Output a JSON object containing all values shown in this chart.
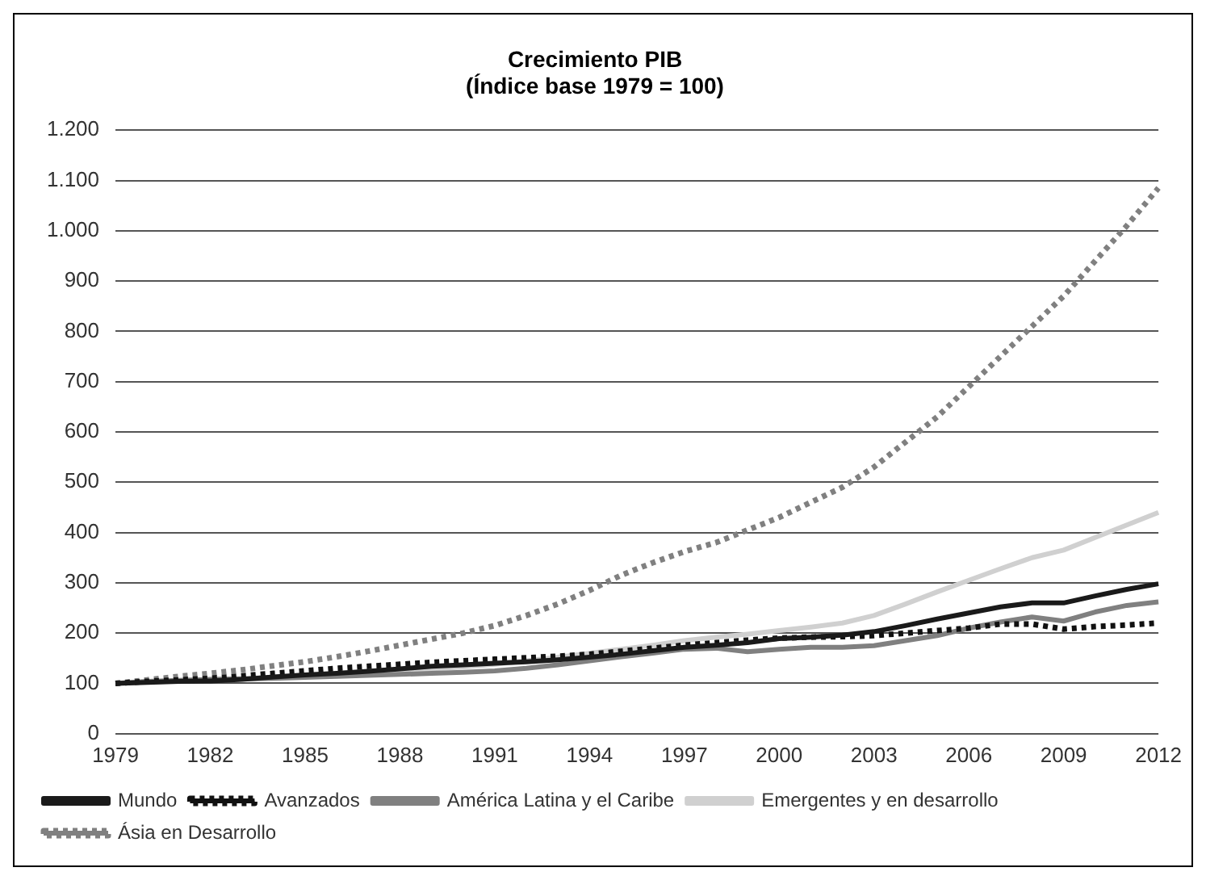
{
  "chart_data": {
    "type": "line",
    "title": "Crecimiento PIB\n(Índice base 1979 = 100)",
    "categories": [
      "1979",
      null,
      null,
      "1982",
      null,
      null,
      "1985",
      null,
      null,
      "1988",
      null,
      null,
      "1991",
      null,
      null,
      "1994",
      null,
      null,
      "1997",
      null,
      null,
      "2000",
      null,
      null,
      "2003",
      null,
      null,
      "2006",
      null,
      null,
      "2009",
      null,
      null,
      "2012"
    ],
    "ylim": [
      0,
      1200
    ],
    "yticks": [
      0,
      100,
      200,
      300,
      400,
      500,
      600,
      700,
      800,
      900,
      {
        "value": 1000,
        "label": "1.000"
      },
      {
        "value": 1100,
        "label": "1.100"
      },
      {
        "value": 1200,
        "label": "1.200"
      }
    ],
    "grid": "y",
    "legend": "bottom",
    "series": [
      {
        "name": "Mundo",
        "color": "#1a1a1a",
        "line_style": "solid",
        "values": [
          100,
          102,
          104,
          105,
          108,
          113,
          117,
          120,
          124,
          129,
          134,
          137,
          140,
          143,
          147,
          152,
          158,
          165,
          172,
          176,
          181,
          189,
          192,
          196,
          203,
          215,
          228,
          240,
          252,
          260,
          260,
          274,
          287,
          298
        ]
      },
      {
        "name": "Avanzados",
        "color": "#111111",
        "line_style": "dotted",
        "values": [
          100,
          104,
          107,
          110,
          115,
          120,
          125,
          130,
          134,
          138,
          142,
          145,
          148,
          151,
          154,
          158,
          164,
          170,
          176,
          181,
          186,
          190,
          192,
          193,
          195,
          200,
          205,
          210,
          218,
          218,
          208,
          213,
          216,
          220
        ]
      },
      {
        "name": "América Latina y el Caribe",
        "color": "#808080",
        "line_style": "solid",
        "values": [
          100,
          104,
          106,
          108,
          109,
          110,
          112,
          114,
          116,
          118,
          120,
          122,
          125,
          130,
          137,
          145,
          153,
          160,
          168,
          170,
          163,
          168,
          172,
          172,
          175,
          185,
          195,
          210,
          222,
          232,
          224,
          242,
          255,
          262
        ]
      },
      {
        "name": "Emergentes y en desarrollo",
        "color": "#d0d0d0",
        "line_style": "solid",
        "values": [
          100,
          103,
          105,
          108,
          110,
          112,
          115,
          118,
          121,
          125,
          129,
          133,
          138,
          145,
          152,
          160,
          168,
          176,
          185,
          192,
          198,
          205,
          212,
          220,
          235,
          258,
          282,
          305,
          328,
          350,
          365,
          390,
          415,
          440
        ]
      },
      {
        "name": "Ásia en Desarrollo",
        "color": "#808080",
        "line_style": "dotted",
        "values": [
          100,
          107,
          114,
          120,
          127,
          135,
          143,
          153,
          164,
          176,
          188,
          200,
          215,
          235,
          258,
          285,
          315,
          340,
          362,
          380,
          405,
          430,
          460,
          490,
          530,
          580,
          630,
          690,
          750,
          810,
          870,
          940,
          1010,
          1085
        ]
      }
    ]
  }
}
